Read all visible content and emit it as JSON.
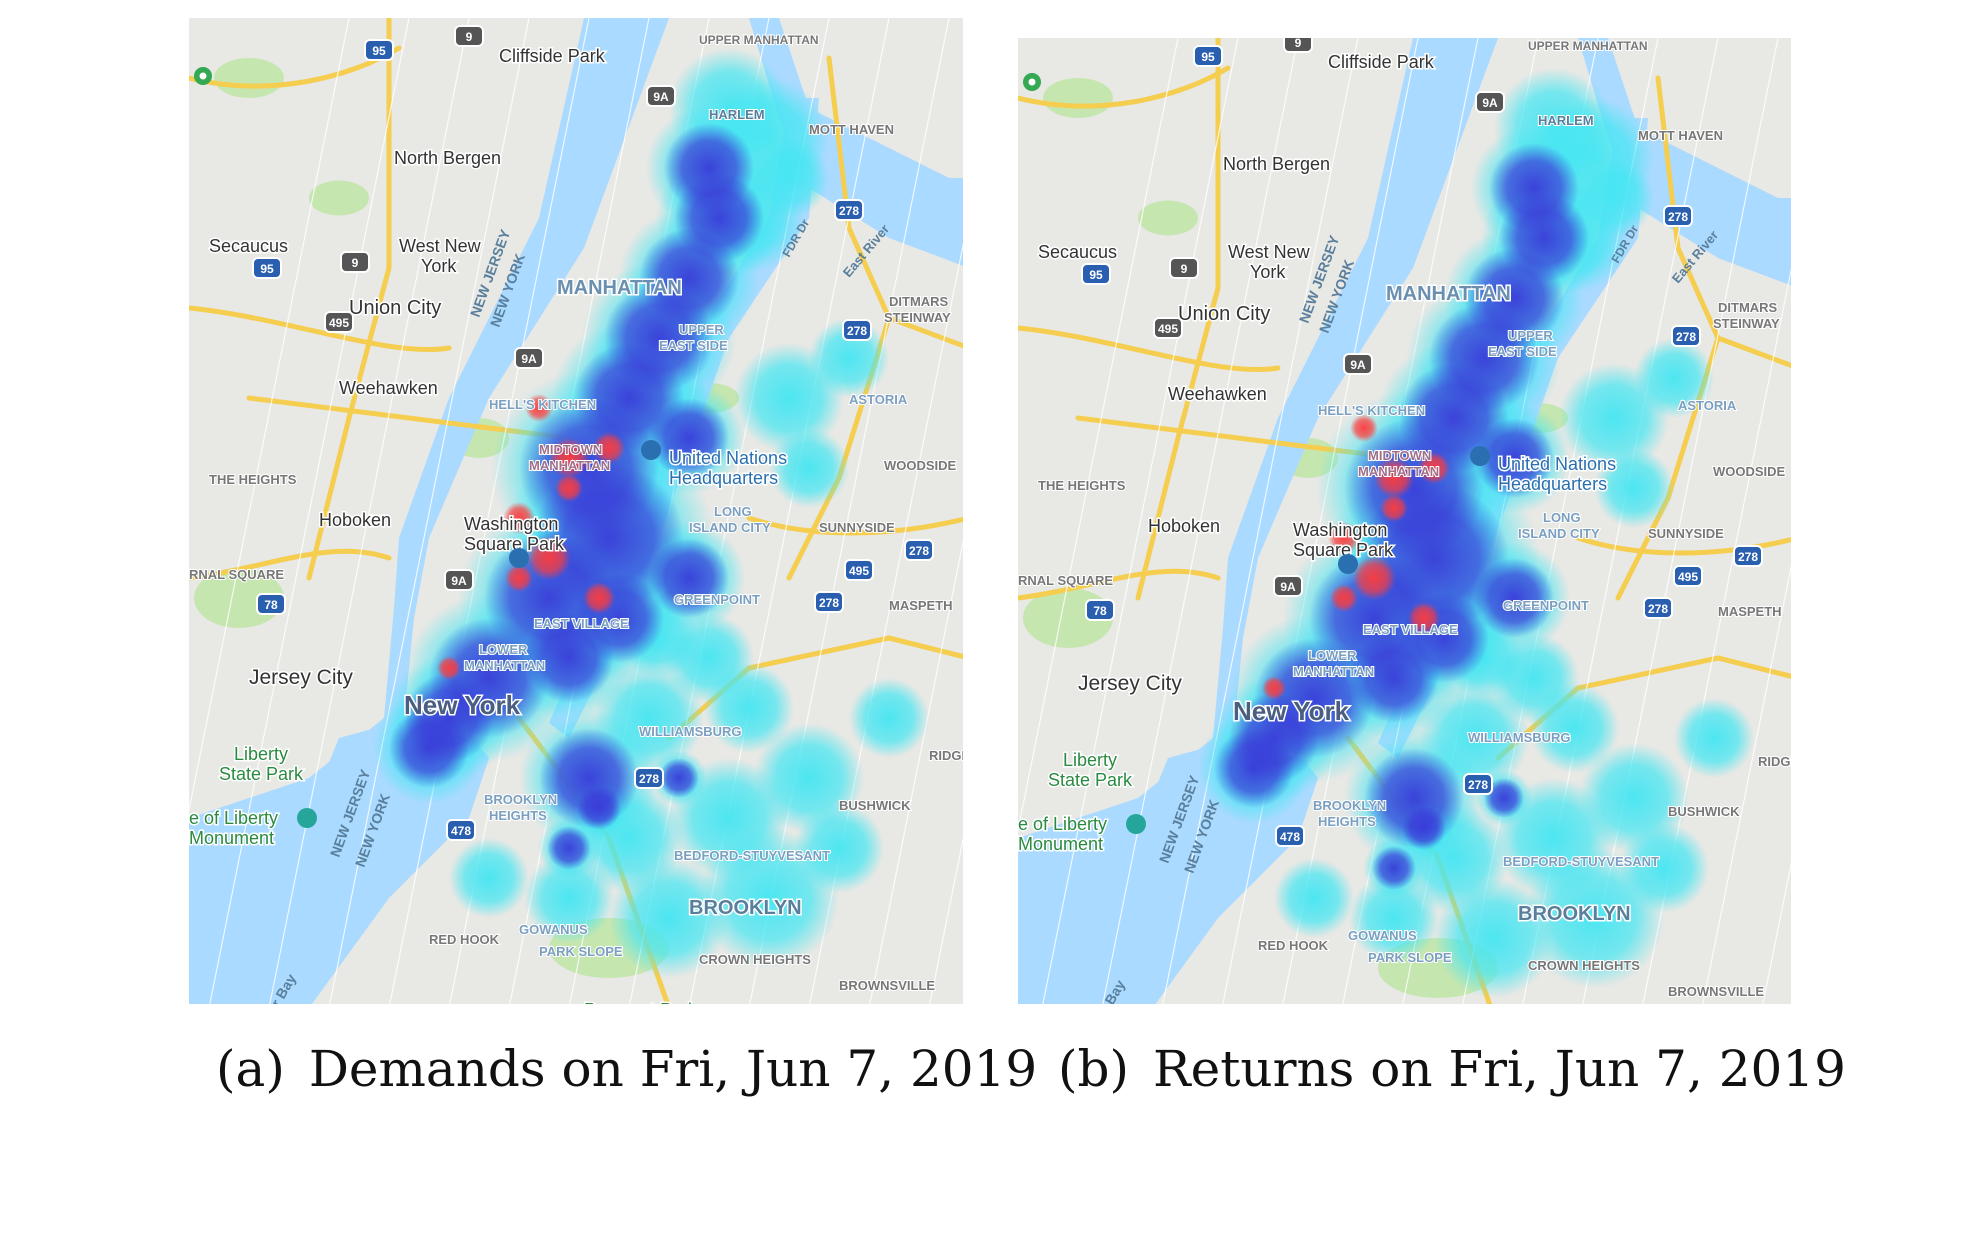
{
  "figure": {
    "panels": [
      {
        "id": "a",
        "caption_tag": "(a)",
        "caption_text": "Demands on Fri, Jun 7, 2019"
      },
      {
        "id": "b",
        "caption_tag": "(b)",
        "caption_text": "Returns on Fri, Jun 7, 2019"
      }
    ],
    "map_labels": {
      "cliffside_park": "Cliffside Park",
      "upper_manhattan": "UPPER MANHATTAN",
      "north_bergen": "North Bergen",
      "harlem": "HARLEM",
      "mott_haven": "MOTT HAVEN",
      "secaucus": "Secaucus",
      "west_new_york_1": "West New",
      "west_new_york_2": "York",
      "union_city": "Union City",
      "manhattan": "MANHATTAN",
      "upper_east_side_1": "UPPER",
      "upper_east_side_2": "EAST SIDE",
      "ditmars_1": "DITMARS",
      "ditmars_2": "STEINWAY",
      "weehawken": "Weehawken",
      "hells_kitchen": "HELL'S KITCHEN",
      "astoria": "ASTORIA",
      "midtown_1": "MIDTOWN",
      "midtown_2": "MANHATTAN",
      "un_1": "United Nations",
      "un_2": "Headquarters",
      "woodside": "WOODSIDE",
      "the_heights": "THE HEIGHTS",
      "hoboken": "Hoboken",
      "washington_sq_1": "Washington",
      "washington_sq_2": "Square Park",
      "lic_1": "LONG",
      "lic_2": "ISLAND CITY",
      "sunnyside": "SUNNYSIDE",
      "journal_square": "RNAL SQUARE",
      "greenpoint": "GREENPOINT",
      "maspeth": "MASPETH",
      "east_village": "EAST VILLAGE",
      "lower_manhattan_1": "LOWER",
      "lower_manhattan_2": "MANHATTAN",
      "jersey_city": "Jersey City",
      "new_york": "New York",
      "williamsburg": "WILLIAMSBURG",
      "ridgewood": "RIDGEW",
      "liberty_sp_1": "Liberty",
      "liberty_sp_2": "State Park",
      "statue_1": "e of Liberty",
      "statue_2": "Monument",
      "brooklyn_heights_1": "BROOKLYN",
      "brooklyn_heights_2": "HEIGHTS",
      "bushwick": "BUSHWICK",
      "bedford": "BEDFORD-STUYVESANT",
      "brooklyn": "BROOKLYN",
      "red_hook": "RED HOOK",
      "gowanus": "GOWANUS",
      "park_slope": "PARK SLOPE",
      "crown_heights": "CROWN HEIGHTS",
      "brownsville": "BROWNSVILLE",
      "prospect_park": "Prospect Park",
      "nj_1": "NEW JERSEY",
      "ny_1": "NEW YORK",
      "fdr": "FDR Dr",
      "east_river": "East River",
      "bay": "r Bay",
      "r95": "95",
      "r9": "9",
      "r9a": "9A",
      "r278": "278",
      "r495": "495",
      "r78": "78",
      "r478": "478"
    },
    "heatmap_colors": {
      "low": "#44e6f2",
      "mid": "#3a3ad8",
      "high": "#ff3b3b"
    },
    "map_colors": {
      "land": "#e8e8e5",
      "water": "#aadaff",
      "park": "#c6e6b0",
      "highway": "#f5cd4f"
    }
  }
}
